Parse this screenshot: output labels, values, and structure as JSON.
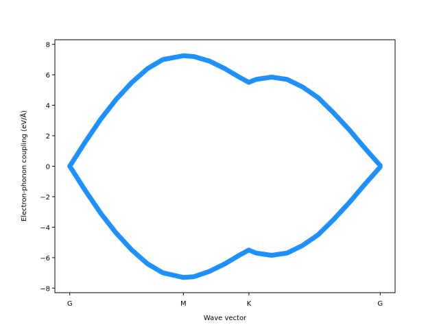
{
  "chart_data": {
    "type": "line",
    "xlabel": "Wave vector",
    "ylabel": "Electron-phonon coupling (eV/Å)",
    "xlim": [
      -0.048,
      1.048
    ],
    "ylim": [
      -8.3,
      8.3
    ],
    "xticks": [
      {
        "value": 0.0,
        "label": "G"
      },
      {
        "value": 0.366,
        "label": "M"
      },
      {
        "value": 0.577,
        "label": "K"
      },
      {
        "value": 1.0,
        "label": "G"
      }
    ],
    "yticks": [
      {
        "value": -8,
        "label": "−8"
      },
      {
        "value": -6,
        "label": "−6"
      },
      {
        "value": -4,
        "label": "−4"
      },
      {
        "value": -2,
        "label": "−2"
      },
      {
        "value": 0,
        "label": "0"
      },
      {
        "value": 2,
        "label": "2"
      },
      {
        "value": 4,
        "label": "4"
      },
      {
        "value": 6,
        "label": "6"
      },
      {
        "value": 8,
        "label": "8"
      }
    ],
    "grid": false,
    "series": [
      {
        "color": "#1e90ff",
        "points": [
          [
            0.0,
            0.0
          ],
          [
            0.05,
            1.6
          ],
          [
            0.1,
            3.1
          ],
          [
            0.15,
            4.4
          ],
          [
            0.2,
            5.5
          ],
          [
            0.25,
            6.4
          ],
          [
            0.3,
            7.0
          ],
          [
            0.366,
            7.25
          ],
          [
            0.4,
            7.2
          ],
          [
            0.45,
            6.9
          ],
          [
            0.5,
            6.4
          ],
          [
            0.55,
            5.8
          ],
          [
            0.577,
            5.5
          ],
          [
            0.6,
            5.7
          ],
          [
            0.65,
            5.85
          ],
          [
            0.7,
            5.7
          ],
          [
            0.75,
            5.2
          ],
          [
            0.8,
            4.5
          ],
          [
            0.85,
            3.5
          ],
          [
            0.9,
            2.4
          ],
          [
            0.95,
            1.2
          ],
          [
            1.0,
            0.05
          ]
        ]
      },
      {
        "color": "#1e90ff",
        "points": [
          [
            0.0,
            0.0
          ],
          [
            0.05,
            -1.6
          ],
          [
            0.1,
            -3.1
          ],
          [
            0.15,
            -4.4
          ],
          [
            0.2,
            -5.5
          ],
          [
            0.25,
            -6.4
          ],
          [
            0.3,
            -7.0
          ],
          [
            0.366,
            -7.3
          ],
          [
            0.4,
            -7.25
          ],
          [
            0.45,
            -6.9
          ],
          [
            0.5,
            -6.4
          ],
          [
            0.55,
            -5.8
          ],
          [
            0.577,
            -5.5
          ],
          [
            0.6,
            -5.7
          ],
          [
            0.65,
            -5.85
          ],
          [
            0.7,
            -5.7
          ],
          [
            0.75,
            -5.2
          ],
          [
            0.8,
            -4.5
          ],
          [
            0.85,
            -3.5
          ],
          [
            0.9,
            -2.4
          ],
          [
            0.95,
            -1.2
          ],
          [
            1.0,
            -0.05
          ]
        ]
      }
    ]
  }
}
